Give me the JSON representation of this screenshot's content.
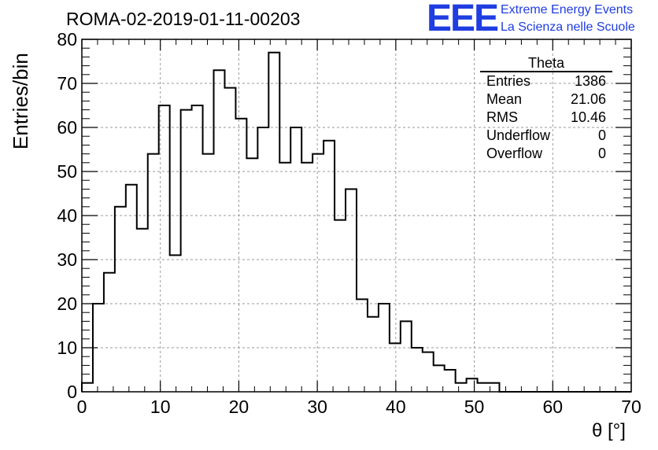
{
  "header": {
    "title": "ROMA-02-2019-01-11-00203",
    "logo_text": "EEE",
    "logo_line1": "Extreme Energy Events",
    "logo_line2": "La Scienza nelle Scuole"
  },
  "stats": {
    "name": "Theta",
    "rows": [
      {
        "label": "Entries",
        "value": "1386"
      },
      {
        "label": "Mean",
        "value": "21.06"
      },
      {
        "label": "RMS",
        "value": "10.46"
      },
      {
        "label": "Underflow",
        "value": "0"
      },
      {
        "label": "Overflow",
        "value": "0"
      }
    ]
  },
  "colors": {
    "accent": "#1f3de0",
    "line": "#000000",
    "grid": "#9a9a9a"
  },
  "chart_data": {
    "type": "bar",
    "style": "step-histogram",
    "title": "ROMA-02-2019-01-11-00203",
    "xlabel": "θ [°]",
    "ylabel": "Entries/bin",
    "xlim": [
      0,
      70
    ],
    "ylim": [
      0,
      80
    ],
    "grid": true,
    "xticks": [
      0,
      10,
      20,
      30,
      40,
      50,
      60,
      70
    ],
    "yticks": [
      0,
      10,
      20,
      30,
      40,
      50,
      60,
      70,
      80
    ],
    "bin_width": 1.4,
    "values": [
      2,
      20,
      27,
      42,
      47,
      37,
      54,
      65,
      31,
      64,
      65,
      54,
      73,
      69,
      62,
      53,
      60,
      77,
      52,
      60,
      52,
      54,
      57,
      39,
      46,
      21,
      17,
      20,
      11,
      16,
      10,
      9,
      6,
      5,
      2,
      3,
      2,
      2,
      0,
      0,
      0,
      0,
      0,
      0,
      0,
      0,
      0,
      0,
      0,
      0
    ]
  }
}
